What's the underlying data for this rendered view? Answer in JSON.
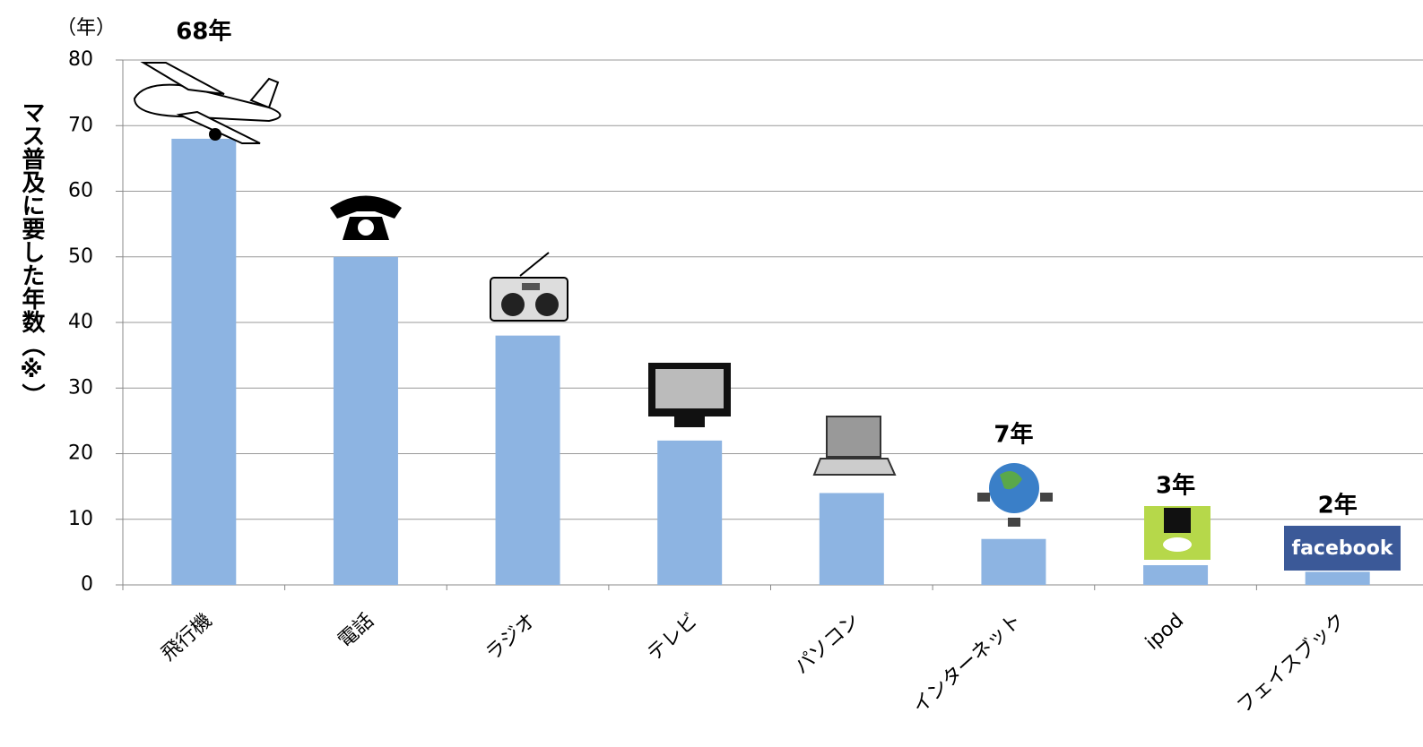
{
  "chart_data": {
    "type": "bar",
    "y_axis_label": "マス普及に要した年数（※）",
    "y_unit_label": "（年）",
    "categories": [
      "飛行機",
      "電話",
      "ラジオ",
      "テレビ",
      "パソコン",
      "インターネット",
      "ipod",
      "フェイスブック"
    ],
    "values": [
      68,
      50,
      38,
      22,
      14,
      7,
      3,
      2
    ],
    "value_labels": [
      "68年",
      null,
      null,
      null,
      null,
      "7年",
      "3年",
      "2年"
    ],
    "color": "#8db4e2",
    "ylim": [
      0,
      80
    ],
    "yticks": [
      0,
      10,
      20,
      30,
      40,
      50,
      60,
      70,
      80
    ],
    "grid": true,
    "annotations": [
      "facebook"
    ]
  }
}
